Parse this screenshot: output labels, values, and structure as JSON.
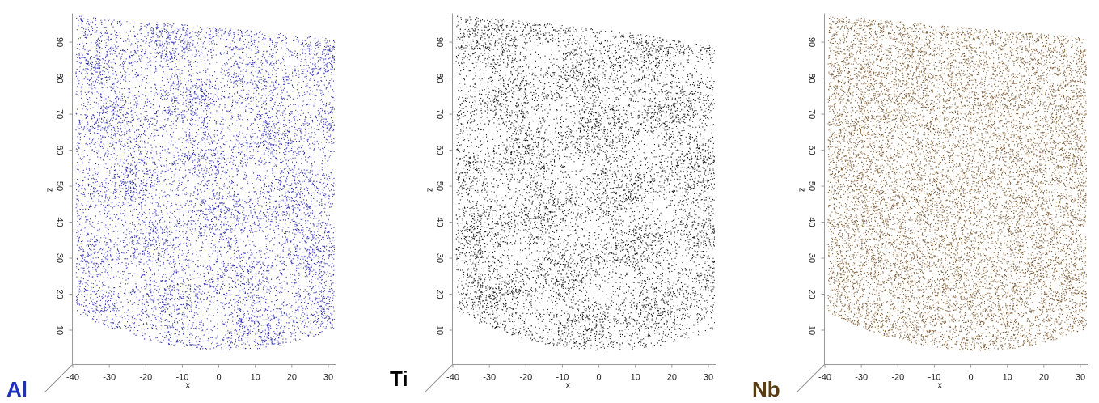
{
  "chart_data": [
    {
      "type": "scatter",
      "title": "Al",
      "title_color": "#1f2fc0",
      "color": "#1c1ca8",
      "xlabel": "x",
      "ylabel": "z",
      "xlim": [
        -41,
        32
      ],
      "ylim": [
        0,
        98
      ],
      "xticks": [
        -40,
        -30,
        -20,
        -10,
        0,
        10,
        20,
        30
      ],
      "yticks": [
        10,
        20,
        30,
        40,
        50,
        60,
        70,
        80,
        90
      ]
    },
    {
      "type": "scatter",
      "title": "Ti",
      "title_color": "#000000",
      "color": "#000000",
      "xlabel": "x",
      "ylabel": "z",
      "xlim": [
        -41,
        32
      ],
      "ylim": [
        0,
        98
      ],
      "xticks": [
        -40,
        -30,
        -20,
        -10,
        0,
        10,
        20,
        30
      ],
      "yticks": [
        10,
        20,
        30,
        40,
        50,
        60,
        70,
        80,
        90
      ]
    },
    {
      "type": "scatter",
      "title": "Nb",
      "title_color": "#5a3c14",
      "color": "#6b3f0e",
      "xlabel": "x",
      "ylabel": "z",
      "xlim": [
        -41,
        32
      ],
      "ylim": [
        0,
        98
      ],
      "xticks": [
        -40,
        -30,
        -20,
        -10,
        0,
        10,
        20,
        30
      ],
      "yticks": [
        10,
        20,
        30,
        40,
        50,
        60,
        70,
        80,
        90
      ]
    }
  ]
}
